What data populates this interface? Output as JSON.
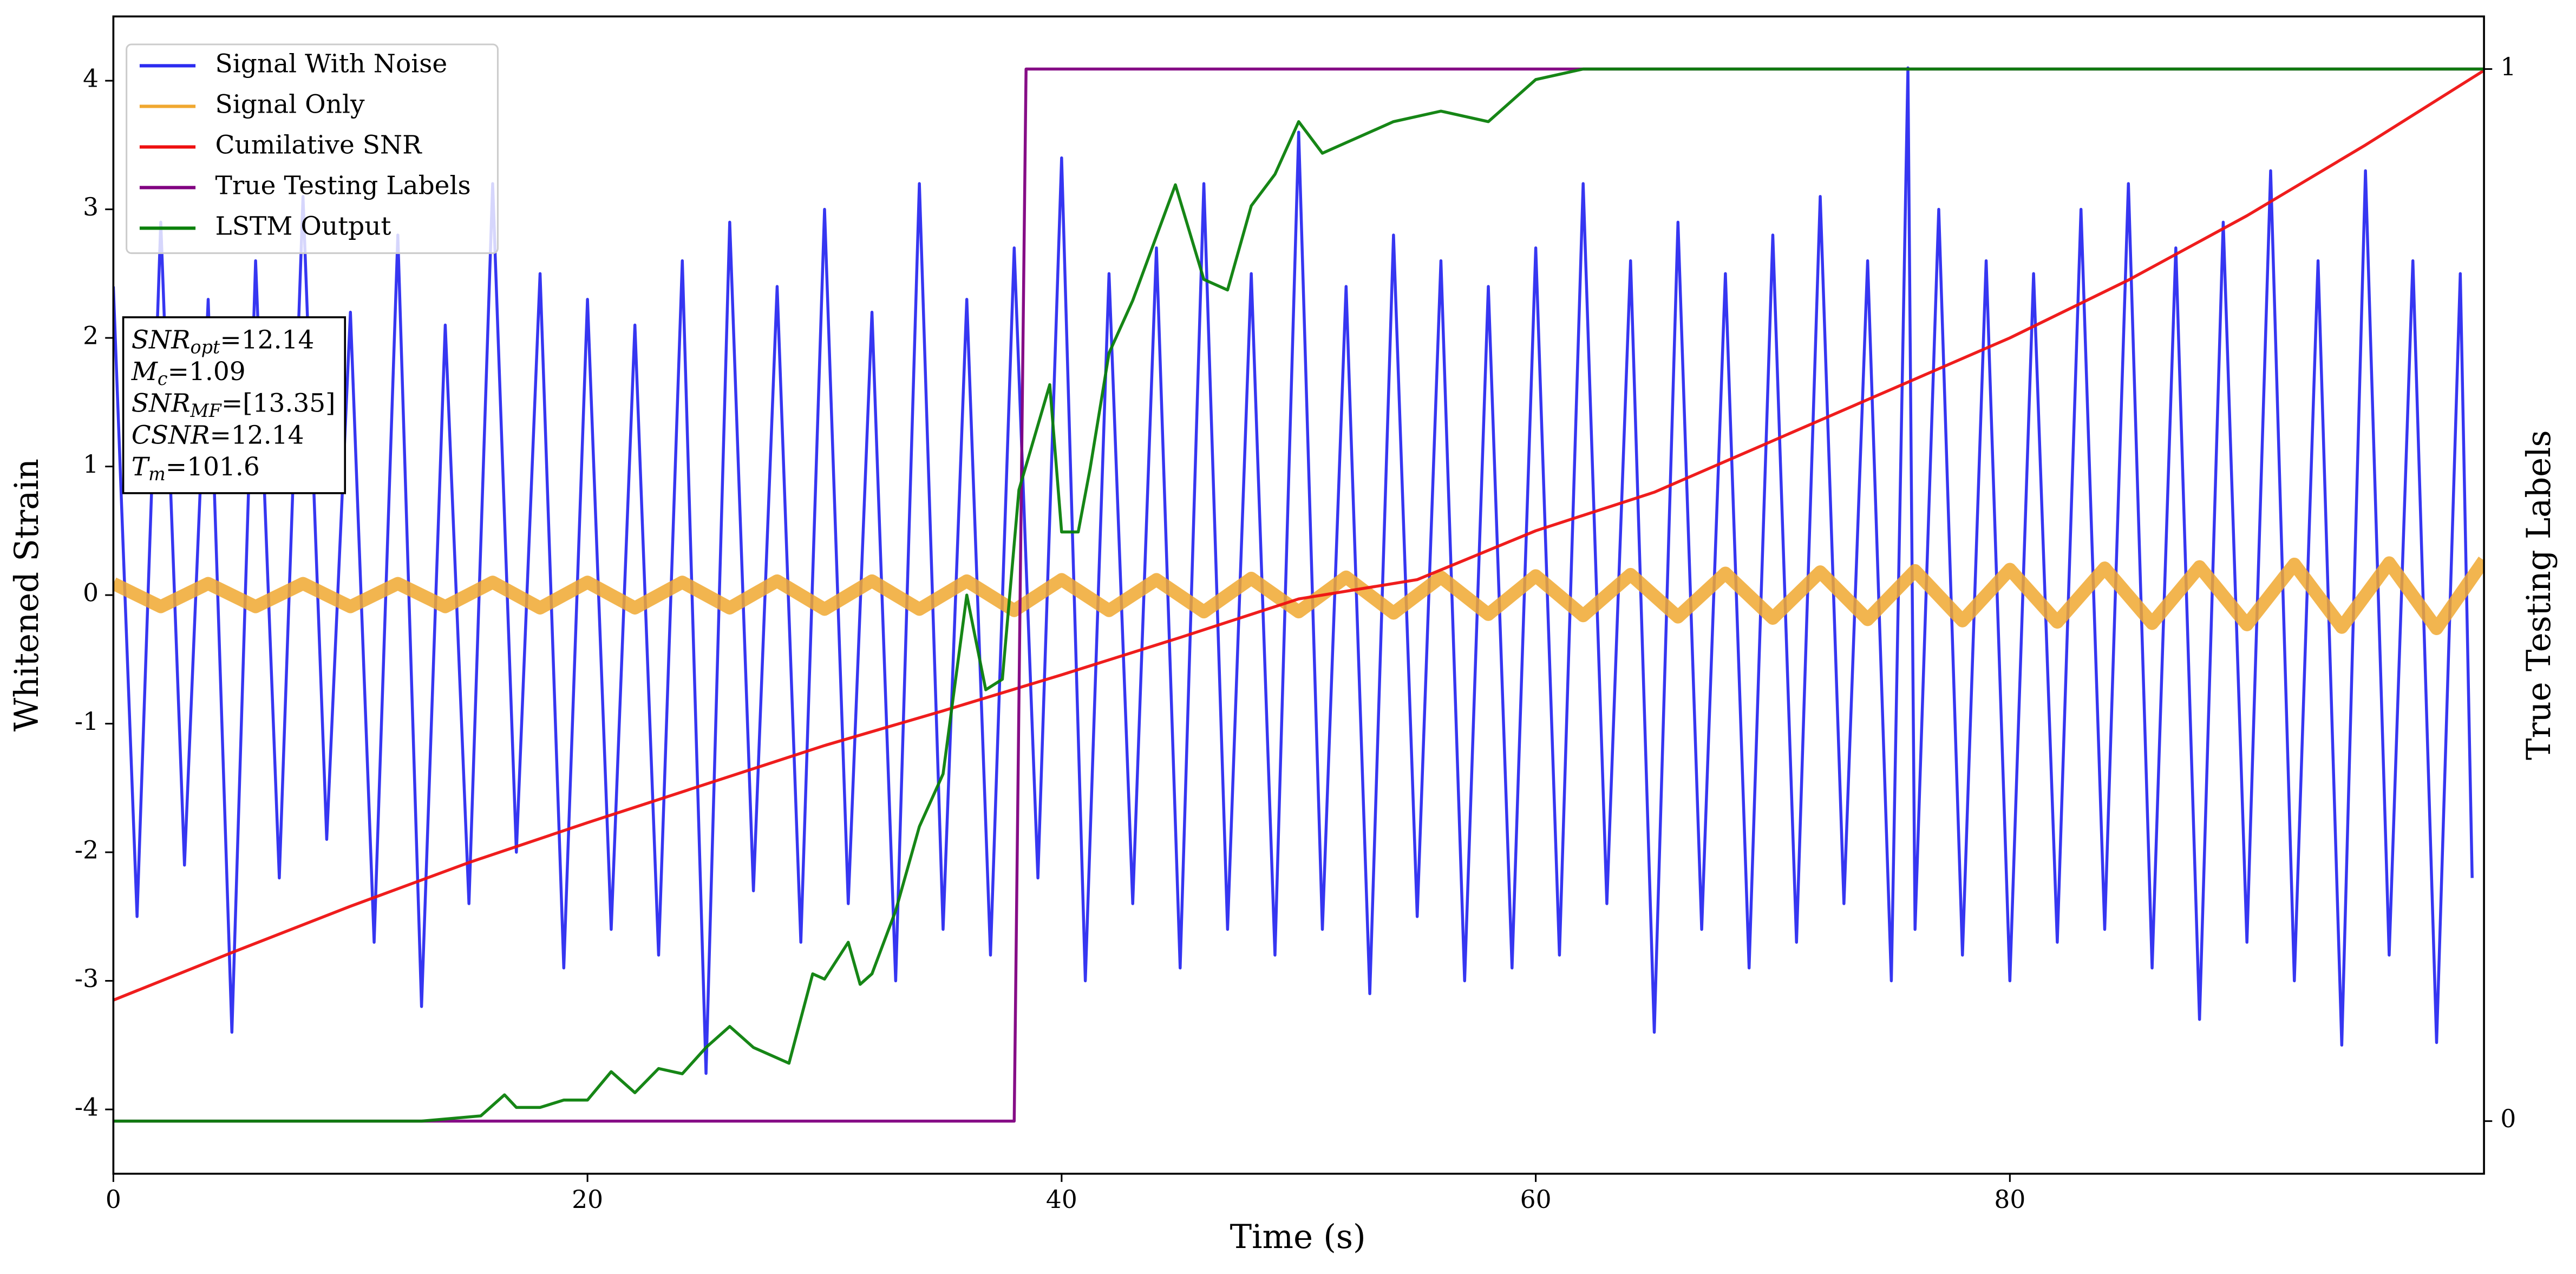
{
  "chart_data": {
    "type": "line",
    "xlabel": "Time (s)",
    "ylabel": "Whitened Strain",
    "y2label": "True Testing Labels",
    "xlim": [
      0,
      100
    ],
    "xticks": [
      0,
      20,
      40,
      60,
      80
    ],
    "ylim": [
      -4.5,
      4.5
    ],
    "yticks": [
      -4,
      -3,
      -2,
      -1,
      0,
      1,
      2,
      3,
      4
    ],
    "y2lim": [
      -0.05,
      1.05
    ],
    "y2ticks": [
      0,
      1
    ],
    "legend": "upper left",
    "annotations": [
      {
        "main": "SNR",
        "sub": "opt",
        "rest": "=12.14"
      },
      {
        "main": "M",
        "sub": "c",
        "rest": "=1.09"
      },
      {
        "main": "SNR",
        "sub": "MF",
        "rest": "=[13.35]"
      },
      {
        "main": "CSNR",
        "rest": "=12.14"
      },
      {
        "main": "T",
        "sub": "m",
        "rest": "=101.6"
      }
    ],
    "series": [
      {
        "name": "Signal With Noise",
        "color": "#2b2bf0",
        "axis": "y",
        "x": [
          0,
          1,
          2,
          3,
          4,
          5,
          6,
          7,
          8,
          9,
          10,
          11,
          12,
          13,
          14,
          15,
          16,
          17,
          18,
          19,
          20,
          21,
          22,
          23,
          24,
          25,
          26,
          27,
          28,
          29,
          30,
          31,
          32,
          33,
          34,
          35,
          36,
          37,
          38,
          39,
          40,
          41,
          42,
          43,
          44,
          45,
          46,
          47,
          48,
          49,
          50,
          51,
          52,
          53,
          54,
          55,
          56,
          57,
          58,
          59,
          60,
          61,
          62,
          63,
          64,
          65,
          66,
          67,
          68,
          69,
          70,
          71,
          72,
          73,
          74,
          75,
          75.7,
          76,
          77,
          78,
          79,
          80,
          81,
          82,
          83,
          84,
          85,
          86,
          87,
          88,
          89,
          90,
          91,
          92,
          93,
          94,
          95,
          96,
          97,
          98,
          99,
          99.5
        ],
        "values": [
          2.4,
          -2.5,
          2.9,
          -2.1,
          2.3,
          -3.4,
          2.6,
          -2.2,
          3.1,
          -1.9,
          2.2,
          -2.7,
          2.8,
          -3.2,
          2.1,
          -2.4,
          3.2,
          -2.0,
          2.5,
          -2.9,
          2.3,
          -2.6,
          2.1,
          -2.8,
          2.6,
          -3.72,
          2.9,
          -2.3,
          2.4,
          -2.7,
          3.0,
          -2.4,
          2.2,
          -3.0,
          3.2,
          -2.6,
          2.3,
          -2.8,
          2.7,
          -2.2,
          3.4,
          -3.0,
          2.5,
          -2.4,
          2.7,
          -2.9,
          3.2,
          -2.6,
          2.5,
          -2.8,
          3.6,
          -2.6,
          2.4,
          -3.1,
          2.8,
          -2.5,
          2.6,
          -3.0,
          2.4,
          -2.9,
          2.7,
          -2.8,
          3.2,
          -2.4,
          2.6,
          -3.4,
          2.9,
          -2.6,
          2.5,
          -2.9,
          2.8,
          -2.7,
          3.1,
          -2.4,
          2.6,
          -3.0,
          4.1,
          -2.6,
          3.0,
          -2.8,
          2.6,
          -3.0,
          2.5,
          -2.7,
          3.0,
          -2.6,
          3.2,
          -2.9,
          2.7,
          -3.3,
          2.9,
          -2.7,
          3.3,
          -3.0,
          2.6,
          -3.5,
          3.3,
          -2.8,
          2.6,
          -3.48,
          2.5,
          -2.2
        ]
      },
      {
        "name": "Signal Only",
        "color": "#f0a830",
        "axis": "y",
        "x": [
          0,
          2,
          4,
          6,
          8,
          10,
          12,
          14,
          16,
          18,
          20,
          22,
          24,
          26,
          28,
          30,
          32,
          34,
          36,
          38,
          40,
          42,
          44,
          46,
          48,
          50,
          52,
          54,
          56,
          58,
          60,
          62,
          64,
          66,
          68,
          70,
          72,
          74,
          76,
          78,
          80,
          82,
          84,
          86,
          88,
          90,
          92,
          94,
          96,
          98,
          100
        ],
        "values": [
          0.09,
          -0.09,
          0.09,
          -0.09,
          0.09,
          -0.09,
          0.09,
          -0.09,
          0.1,
          -0.1,
          0.1,
          -0.1,
          0.1,
          -0.1,
          0.11,
          -0.11,
          0.11,
          -0.11,
          0.11,
          -0.12,
          0.12,
          -0.12,
          0.12,
          -0.13,
          0.13,
          -0.13,
          0.14,
          -0.14,
          0.14,
          -0.15,
          0.15,
          -0.16,
          0.16,
          -0.17,
          0.17,
          -0.18,
          0.18,
          -0.19,
          0.19,
          -0.2,
          0.2,
          -0.21,
          0.21,
          -0.22,
          0.22,
          -0.23,
          0.24,
          -0.25,
          0.25,
          -0.26,
          0.27
        ]
      },
      {
        "name": "Cumilative SNR",
        "color": "#ee1111",
        "axis": "y",
        "x": [
          0,
          5,
          10,
          15,
          20,
          25,
          30,
          35,
          40,
          45,
          50,
          55,
          60,
          65,
          70,
          75,
          80,
          85,
          90,
          95,
          100
        ],
        "values": [
          -3.15,
          -2.78,
          -2.42,
          -2.08,
          -1.77,
          -1.47,
          -1.17,
          -0.9,
          -0.62,
          -0.33,
          -0.03,
          0.12,
          0.5,
          0.8,
          1.2,
          1.6,
          2.0,
          2.45,
          2.95,
          3.5,
          4.08
        ]
      },
      {
        "name": "True Testing Labels",
        "color": "#800080",
        "axis": "y2",
        "x": [
          0,
          38,
          38.5,
          100
        ],
        "values": [
          0,
          0,
          1,
          1
        ]
      },
      {
        "name": "LSTM Output",
        "color": "#0a800a",
        "axis": "y2",
        "x": [
          0,
          13,
          15.5,
          16.5,
          17,
          18,
          19,
          20,
          21,
          22,
          23,
          24,
          25,
          26,
          27,
          28.5,
          29.5,
          30,
          31,
          31.5,
          32,
          33,
          34,
          35,
          36,
          36.8,
          37.5,
          38.2,
          39.5,
          40,
          40.7,
          41.2,
          42,
          43,
          44.8,
          46,
          47,
          48,
          49,
          50,
          51,
          52,
          54,
          56,
          58,
          60,
          62,
          65,
          68,
          100
        ],
        "values": [
          0,
          0,
          0.005,
          0.025,
          0.013,
          0.013,
          0.02,
          0.02,
          0.047,
          0.027,
          0.05,
          0.045,
          0.07,
          0.09,
          0.07,
          0.055,
          0.14,
          0.135,
          0.17,
          0.13,
          0.14,
          0.2,
          0.28,
          0.33,
          0.5,
          0.41,
          0.42,
          0.6,
          0.7,
          0.56,
          0.56,
          0.62,
          0.73,
          0.78,
          0.89,
          0.8,
          0.79,
          0.87,
          0.9,
          0.95,
          0.92,
          0.93,
          0.95,
          0.96,
          0.95,
          0.99,
          1.0,
          1.0,
          1.0,
          1.0
        ]
      }
    ]
  }
}
